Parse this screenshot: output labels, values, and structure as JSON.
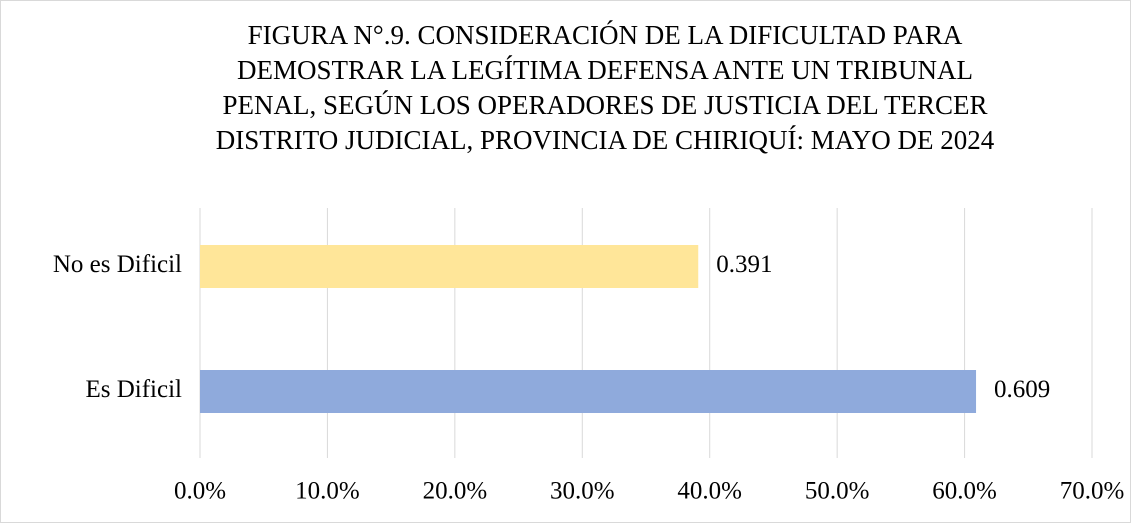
{
  "chart_data": {
    "type": "hbar",
    "title": [
      "FIGURA N°.9. CONSIDERACIÓN DE LA DIFICULTAD PARA",
      "DEMOSTRAR LA LEGÍTIMA DEFENSA ANTE UN TRIBUNAL",
      "PENAL, SEGÚN LOS OPERADORES DE JUSTICIA DEL TERCER",
      "DISTRITO JUDICIAL, PROVINCIA DE CHIRIQUÍ: MAYO DE 2024"
    ],
    "categories": [
      "No es Dificil",
      "Es Dificil"
    ],
    "values": [
      39.1,
      60.9
    ],
    "value_labels": [
      "0.391",
      "0.609"
    ],
    "colors": [
      "#ffe699",
      "#8faadc"
    ],
    "xlim": [
      0,
      70
    ],
    "xticks": [
      {
        "value": 0,
        "label": "0.0%"
      },
      {
        "value": 10,
        "label": "10.0%"
      },
      {
        "value": 20,
        "label": "20.0%"
      },
      {
        "value": 30,
        "label": "30.0%"
      },
      {
        "value": 40,
        "label": "40.0%"
      },
      {
        "value": 50,
        "label": "50.0%"
      },
      {
        "value": 60,
        "label": "60.0%"
      },
      {
        "value": 70,
        "label": "70.0%"
      }
    ],
    "grid": true
  }
}
